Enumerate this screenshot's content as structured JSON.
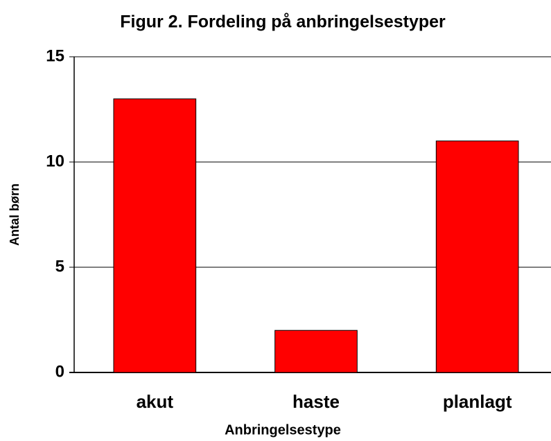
{
  "chart_data": {
    "type": "bar",
    "title": "Figur 2.  Fordeling på anbringelsestyper",
    "x_label": "Anbringelsestype",
    "y_label": "Antal børn",
    "categories": [
      "akut",
      "haste",
      "planlagt"
    ],
    "values": [
      13,
      2,
      11
    ],
    "color": "#ff0000",
    "ylim": [
      0,
      15
    ],
    "yticks": [
      0,
      5,
      10,
      15
    ],
    "grid": true
  }
}
